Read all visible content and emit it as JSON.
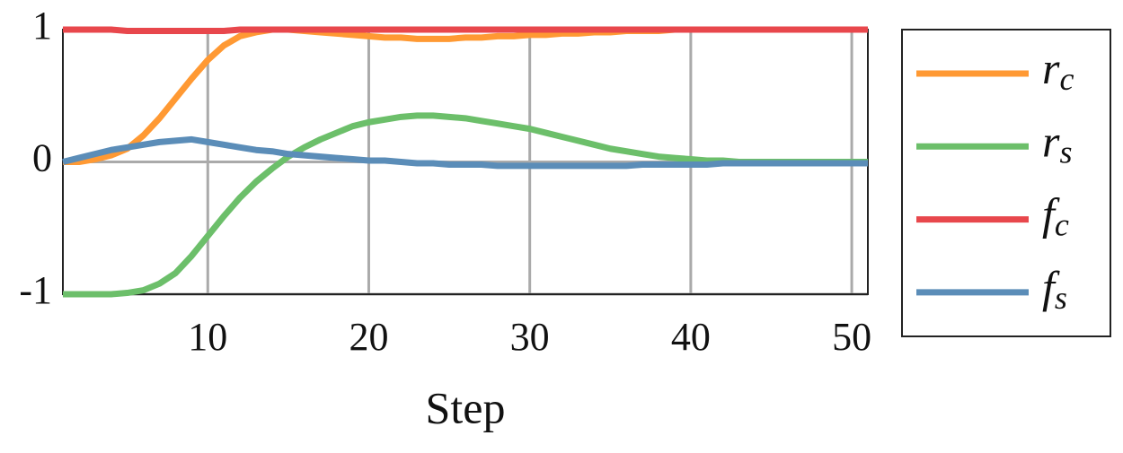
{
  "chart_data": {
    "type": "line",
    "x_label": "Step",
    "x": [
      1,
      2,
      3,
      4,
      5,
      6,
      7,
      8,
      9,
      10,
      11,
      12,
      13,
      14,
      15,
      16,
      17,
      18,
      19,
      20,
      21,
      22,
      23,
      24,
      25,
      26,
      27,
      28,
      29,
      30,
      31,
      32,
      33,
      34,
      35,
      36,
      37,
      38,
      39,
      40,
      41,
      42,
      43,
      44,
      45,
      46,
      47,
      48,
      49,
      50,
      51
    ],
    "xlim": [
      1,
      51
    ],
    "xticks": [
      10,
      20,
      30,
      40,
      50
    ],
    "ylim": [
      -1,
      1
    ],
    "yticks": [
      -1,
      0,
      1
    ],
    "grid": true,
    "series": [
      {
        "name": "rc",
        "color": "#ff9933",
        "values": [
          0,
          0,
          0.02,
          0.05,
          0.1,
          0.2,
          0.33,
          0.48,
          0.63,
          0.77,
          0.88,
          0.95,
          0.98,
          1,
          1,
          0.99,
          0.98,
          0.97,
          0.96,
          0.95,
          0.94,
          0.94,
          0.93,
          0.93,
          0.93,
          0.94,
          0.94,
          0.95,
          0.95,
          0.96,
          0.96,
          0.97,
          0.97,
          0.98,
          0.98,
          0.99,
          0.99,
          0.99,
          1,
          1,
          1,
          1,
          1,
          1,
          1,
          1,
          1,
          1,
          1,
          1,
          1
        ]
      },
      {
        "name": "rs",
        "color": "#6cbf6a",
        "values": [
          -1,
          -1,
          -1,
          -1,
          -0.99,
          -0.97,
          -0.92,
          -0.84,
          -0.71,
          -0.56,
          -0.41,
          -0.27,
          -0.15,
          -0.05,
          0.04,
          0.11,
          0.17,
          0.22,
          0.27,
          0.3,
          0.32,
          0.34,
          0.35,
          0.35,
          0.34,
          0.33,
          0.31,
          0.29,
          0.27,
          0.25,
          0.22,
          0.19,
          0.16,
          0.13,
          0.1,
          0.08,
          0.06,
          0.04,
          0.03,
          0.02,
          0.01,
          0.01,
          0,
          0,
          0,
          0,
          0,
          0,
          0,
          0,
          0
        ]
      },
      {
        "name": "fc",
        "color": "#e8474c",
        "values": [
          1,
          1,
          1,
          1,
          0.99,
          0.99,
          0.99,
          0.99,
          0.99,
          0.99,
          0.99,
          1,
          1,
          1,
          1,
          1,
          1,
          1,
          1,
          1,
          1,
          1,
          1,
          1,
          1,
          1,
          1,
          1,
          1,
          1,
          1,
          1,
          1,
          1,
          1,
          1,
          1,
          1,
          1,
          1,
          1,
          1,
          1,
          1,
          1,
          1,
          1,
          1,
          1,
          1,
          1
        ]
      },
      {
        "name": "fs",
        "color": "#5b8db8",
        "values": [
          0,
          0.03,
          0.06,
          0.09,
          0.11,
          0.13,
          0.15,
          0.16,
          0.17,
          0.15,
          0.13,
          0.11,
          0.09,
          0.08,
          0.06,
          0.05,
          0.04,
          0.03,
          0.02,
          0.01,
          0.01,
          0,
          -0.01,
          -0.01,
          -0.02,
          -0.02,
          -0.02,
          -0.03,
          -0.03,
          -0.03,
          -0.03,
          -0.03,
          -0.03,
          -0.03,
          -0.03,
          -0.03,
          -0.02,
          -0.02,
          -0.02,
          -0.02,
          -0.02,
          -0.01,
          -0.01,
          -0.01,
          -0.01,
          -0.01,
          -0.01,
          -0.01,
          -0.01,
          -0.01,
          -0.01
        ]
      }
    ]
  }
}
